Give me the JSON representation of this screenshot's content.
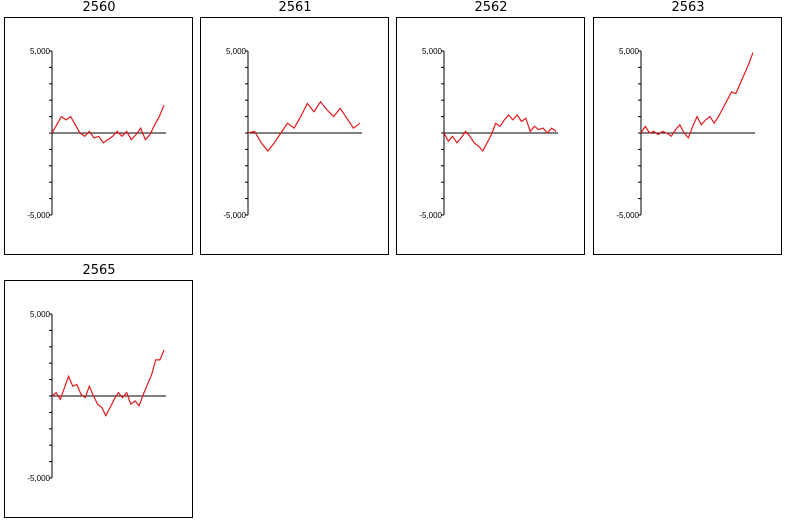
{
  "chart_data": [
    {
      "type": "line",
      "title": "2560",
      "xlabel": "",
      "ylabel": "",
      "ylim": [
        -5000,
        5000
      ],
      "yticks": [
        5000,
        -5000
      ],
      "ytick_labels": [
        "5,000",
        "-5,000"
      ],
      "grid": false,
      "color": "#e31a1c",
      "values": [
        0,
        500,
        1000,
        800,
        1000,
        500,
        0,
        -200,
        100,
        -300,
        -200,
        -600,
        -400,
        -200,
        100,
        -200,
        100,
        -400,
        -100,
        300,
        -400,
        -100,
        500,
        1000,
        1700
      ]
    },
    {
      "type": "line",
      "title": "2561",
      "xlabel": "",
      "ylabel": "",
      "ylim": [
        -5000,
        5000
      ],
      "yticks": [
        5000,
        -5000
      ],
      "ytick_labels": [
        "5,000",
        "-5,000"
      ],
      "grid": false,
      "color": "#e31a1c",
      "values": [
        0,
        100,
        -600,
        -1100,
        -600,
        0,
        600,
        300,
        1000,
        1800,
        1300,
        1900,
        1400,
        1000,
        1500,
        900,
        300,
        600
      ]
    },
    {
      "type": "line",
      "title": "2562",
      "xlabel": "",
      "ylabel": "",
      "ylim": [
        -5000,
        5000
      ],
      "yticks": [
        5000,
        -5000
      ],
      "ytick_labels": [
        "5,000",
        "-5,000"
      ],
      "grid": false,
      "color": "#e31a1c",
      "values": [
        0,
        -500,
        -200,
        -600,
        -300,
        100,
        -200,
        -600,
        -800,
        -1100,
        -600,
        -100,
        600,
        400,
        800,
        1100,
        800,
        1100,
        700,
        900,
        100,
        400,
        200,
        300,
        0,
        300,
        100
      ]
    },
    {
      "type": "line",
      "title": "2563",
      "xlabel": "",
      "ylabel": "",
      "ylim": [
        -5000,
        5000
      ],
      "yticks": [
        5000,
        -5000
      ],
      "ytick_labels": [
        "5,000",
        "-5,000"
      ],
      "grid": false,
      "color": "#e31a1c",
      "values": [
        0,
        400,
        0,
        100,
        -100,
        100,
        0,
        -200,
        200,
        500,
        0,
        -300,
        400,
        1000,
        500,
        800,
        1000,
        600,
        1000,
        1500,
        2000,
        2500,
        2400,
        3000,
        3600,
        4200,
        4900
      ]
    },
    {
      "type": "line",
      "title": "2565",
      "xlabel": "",
      "ylabel": "",
      "ylim": [
        -5000,
        5000
      ],
      "yticks": [
        5000,
        -5000
      ],
      "ytick_labels": [
        "5,000",
        "-5,000"
      ],
      "grid": false,
      "color": "#e31a1c",
      "values": [
        0,
        200,
        -200,
        500,
        1200,
        600,
        700,
        100,
        -100,
        600,
        0,
        -500,
        -700,
        -1200,
        -700,
        -200,
        200,
        -100,
        200,
        -500,
        -300,
        -600,
        100,
        700,
        1300,
        2200,
        2200,
        2800
      ]
    }
  ]
}
